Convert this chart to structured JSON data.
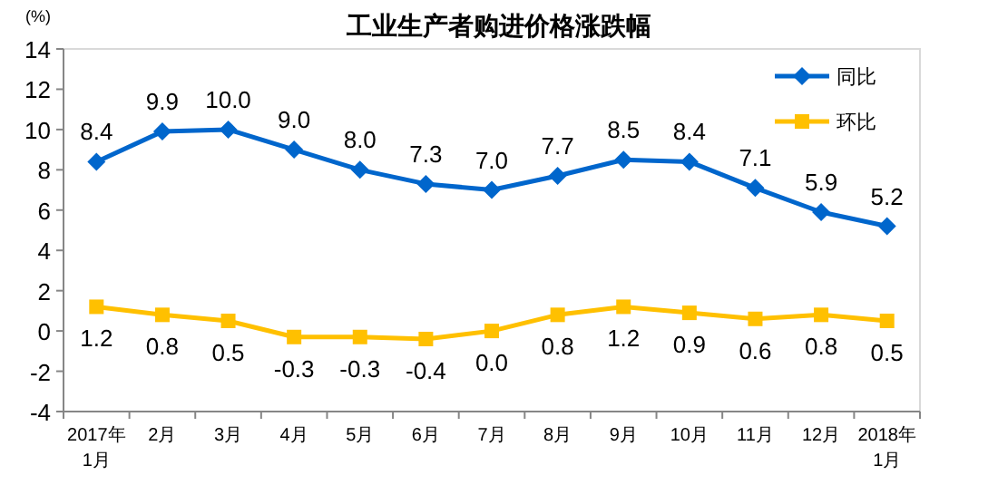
{
  "chart_data": {
    "type": "line",
    "title": "工业生产者购进价格涨跌幅",
    "ylabel": "(%)",
    "categories": [
      "2017年\n1月",
      "2月",
      "3月",
      "4月",
      "5月",
      "6月",
      "7月",
      "8月",
      "9月",
      "10月",
      "11月",
      "12月",
      "2018年\n1月"
    ],
    "series": [
      {
        "name": "同比",
        "color": "#0066cc",
        "marker": "diamond",
        "values": [
          8.4,
          9.9,
          10.0,
          9.0,
          8.0,
          7.3,
          7.0,
          7.7,
          8.5,
          8.4,
          7.1,
          5.9,
          5.2
        ],
        "value_labels": [
          "8.4",
          "9.9",
          "10.0",
          "9.0",
          "8.0",
          "7.3",
          "7.0",
          "7.7",
          "8.5",
          "8.4",
          "7.1",
          "5.9",
          "5.2"
        ]
      },
      {
        "name": "环比",
        "color": "#ffc000",
        "marker": "square",
        "values": [
          1.2,
          0.8,
          0.5,
          -0.3,
          -0.3,
          -0.4,
          0.0,
          0.8,
          1.2,
          0.9,
          0.6,
          0.8,
          0.5
        ],
        "value_labels": [
          "1.2",
          "0.8",
          "0.5",
          "-0.3",
          "-0.3",
          "-0.4",
          "0.0",
          "0.8",
          "1.2",
          "0.9",
          "0.6",
          "0.8",
          "0.5"
        ]
      }
    ],
    "ylim": [
      -4,
      14
    ],
    "yticks": [
      -4,
      -2,
      0,
      2,
      4,
      6,
      8,
      10,
      12,
      14
    ],
    "grid": false,
    "legend": "top right",
    "line_style": "solid"
  }
}
